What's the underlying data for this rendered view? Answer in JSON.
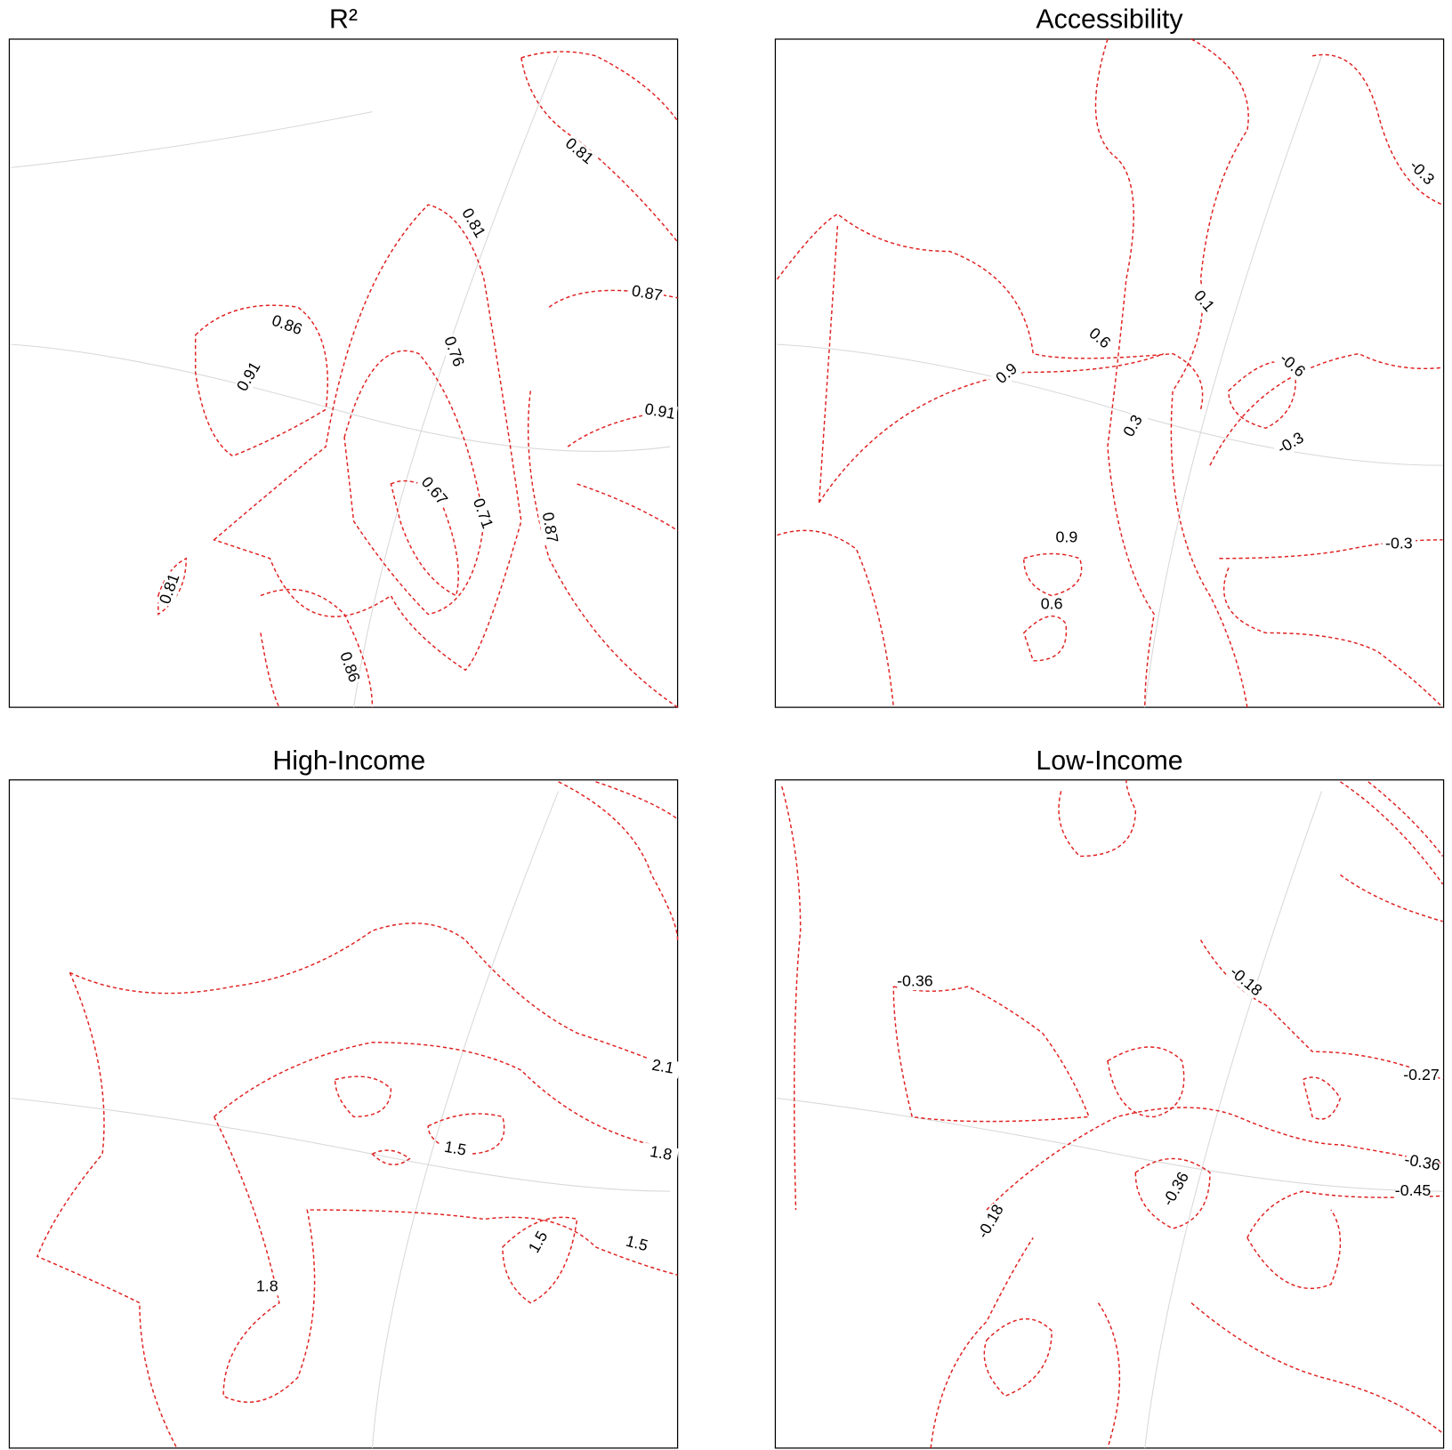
{
  "panels": [
    {
      "title": "R²",
      "labels": [
        "0.81",
        "0.81",
        "0.87",
        "0.86",
        "0.91",
        "0.76",
        "0.91",
        "0.67",
        "0.71",
        "0.87",
        "0.81",
        "0.86"
      ]
    },
    {
      "title": "Accessibility",
      "labels": [
        "-0.3",
        "0.1",
        "0.6",
        "-0.6",
        "0.9",
        "0.3",
        "-0.3",
        "0.9",
        "-0.3",
        "0.6"
      ]
    },
    {
      "title": "High-Income",
      "labels": [
        "2.1",
        "1.5",
        "1.8",
        "1.5",
        "1.5",
        "1.8"
      ]
    },
    {
      "title": "Low-Income",
      "labels": [
        "-0.36",
        "-0.18",
        "-0.27",
        "-0.36",
        "-0.45",
        "-0.36",
        "-0.18"
      ]
    }
  ]
}
